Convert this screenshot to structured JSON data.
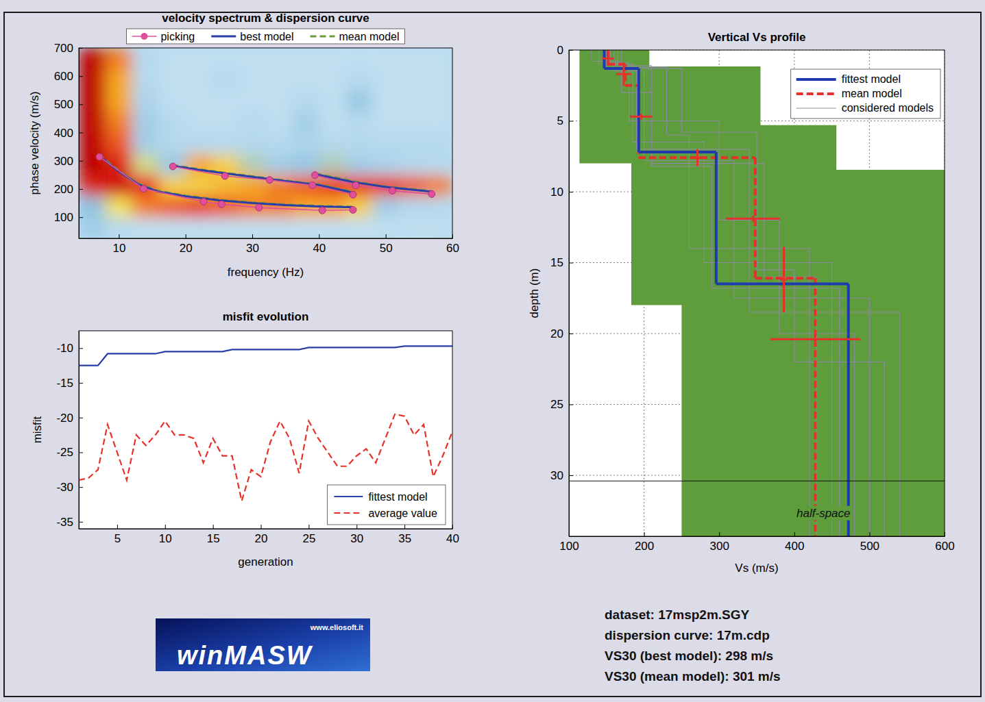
{
  "chart_data": [
    {
      "type": "spectrum",
      "title": "velocity spectrum & dispersion curve",
      "x_label": "frequency (Hz)",
      "y_label": "phase velocity (m/s)",
      "xlim": [
        4,
        60
      ],
      "ylim": [
        25,
        700
      ],
      "xticks": [
        10,
        20,
        30,
        40,
        50,
        60
      ],
      "yticks": [
        100,
        200,
        300,
        400,
        500,
        600,
        700
      ],
      "legend": "top",
      "heatmap": {
        "x_edges": [
          4,
          8,
          12,
          16,
          20,
          24,
          28,
          32,
          36,
          40,
          44,
          48,
          52,
          56,
          60
        ],
        "y_edges": [
          25,
          100,
          175,
          250,
          325,
          400,
          475,
          550,
          625,
          700
        ],
        "zlim": [
          0,
          1
        ],
        "cells": [
          [
            0.3,
            0.2,
            0.15,
            0.15,
            0.15,
            0.15,
            0.15,
            0.15,
            0.15,
            0.15,
            0.15,
            0.15,
            0.15,
            0.15
          ],
          [
            0.4,
            0.55,
            0.75,
            0.8,
            0.85,
            0.8,
            0.75,
            0.75,
            0.7,
            0.7,
            0.6,
            0.3,
            0.2,
            0.2
          ],
          [
            0.9,
            0.95,
            0.85,
            0.6,
            0.6,
            0.65,
            0.7,
            0.75,
            0.8,
            0.85,
            0.85,
            0.85,
            0.8,
            0.75
          ],
          [
            1.0,
            0.9,
            0.5,
            0.35,
            0.7,
            0.6,
            0.45,
            0.3,
            0.35,
            0.45,
            0.3,
            0.25,
            0.2,
            0.2
          ],
          [
            1.0,
            0.8,
            0.3,
            0.2,
            0.2,
            0.2,
            0.2,
            0.2,
            0.25,
            0.2,
            0.2,
            0.2,
            0.2,
            0.2
          ],
          [
            1.0,
            0.75,
            0.3,
            0.2,
            0.15,
            0.15,
            0.2,
            0.15,
            0.3,
            0.15,
            0.2,
            0.15,
            0.15,
            0.15
          ],
          [
            1.0,
            0.7,
            0.25,
            0.15,
            0.15,
            0.15,
            0.15,
            0.15,
            0.2,
            0.15,
            0.35,
            0.15,
            0.15,
            0.15
          ],
          [
            1.0,
            0.7,
            0.2,
            0.15,
            0.15,
            0.2,
            0.15,
            0.15,
            0.15,
            0.15,
            0.2,
            0.15,
            0.15,
            0.15
          ],
          [
            1.0,
            0.75,
            0.2,
            0.15,
            0.15,
            0.15,
            0.15,
            0.15,
            0.15,
            0.15,
            0.15,
            0.15,
            0.15,
            0.15
          ]
        ]
      },
      "series": [
        {
          "name": "picking",
          "color": "#e0509a",
          "marker": "circle",
          "line_style": "solid",
          "x": [
            7.1,
            13.7,
            22.7,
            25.4,
            31,
            40.5,
            45.1,
            45.1,
            18.1,
            25.9,
            32.6,
            39,
            45.1,
            45.1,
            39.4,
            45.5,
            51,
            56.9
          ],
          "values": [
            314,
            201,
            155,
            146,
            134,
            124,
            126,
            null,
            280,
            246,
            232,
            213,
            180,
            null,
            249,
            213,
            194,
            182
          ]
        },
        {
          "name": "best model",
          "color": "#2b3ea8",
          "line_style": "solid",
          "x": [
            7,
            10,
            13,
            16,
            20,
            25,
            30,
            35,
            40,
            45,
            45,
            18,
            22,
            26,
            30,
            35,
            40,
            45.5,
            45.5,
            39.5,
            45,
            50,
            57
          ],
          "values": [
            318,
            262,
            215,
            190,
            174,
            160,
            150,
            143,
            138,
            135,
            null,
            282,
            268,
            255,
            243,
            228,
            214,
            185,
            null,
            252,
            225,
            207,
            190
          ]
        },
        {
          "name": "mean model",
          "color": "#6b9b3b",
          "line_style": "dashed",
          "x": [
            7,
            10,
            13,
            16,
            20,
            25,
            30,
            35,
            40,
            45,
            45,
            18,
            22,
            26,
            30,
            35,
            40,
            45.5,
            45.5,
            39.5,
            45,
            50,
            57
          ],
          "values": [
            322,
            265,
            218,
            193,
            176,
            162,
            152,
            145,
            140,
            137,
            null,
            285,
            270,
            257,
            245,
            230,
            216,
            188,
            null,
            255,
            228,
            209,
            192
          ]
        }
      ]
    },
    {
      "type": "line",
      "title": "misfit evolution",
      "x_label": "generation",
      "y_label": "misfit",
      "xlim": [
        1,
        40
      ],
      "ylim": [
        -36,
        -7.5
      ],
      "xticks": [
        5,
        10,
        15,
        20,
        25,
        30,
        35,
        40
      ],
      "yticks": [
        -10,
        -15,
        -20,
        -25,
        -30,
        -35
      ],
      "legend": "lower right",
      "x": [
        1,
        2,
        3,
        4,
        5,
        6,
        7,
        8,
        9,
        10,
        11,
        12,
        13,
        14,
        15,
        16,
        17,
        18,
        19,
        20,
        21,
        22,
        23,
        24,
        25,
        26,
        27,
        28,
        29,
        30,
        31,
        32,
        33,
        34,
        35,
        36,
        37,
        38,
        39,
        40
      ],
      "series": [
        {
          "name": "fittest model",
          "color": "#2b3ea8",
          "line_style": "solid",
          "values": [
            -12.5,
            -12.5,
            -12.5,
            -10.8,
            -10.8,
            -10.8,
            -10.8,
            -10.8,
            -10.8,
            -10.5,
            -10.5,
            -10.5,
            -10.5,
            -10.5,
            -10.5,
            -10.5,
            -10.2,
            -10.2,
            -10.2,
            -10.2,
            -10.2,
            -10.2,
            -10.2,
            -10.2,
            -9.9,
            -9.9,
            -9.9,
            -9.9,
            -9.9,
            -9.9,
            -9.9,
            -9.9,
            -9.9,
            -9.9,
            -9.7,
            -9.7,
            -9.7,
            -9.7,
            -9.7,
            -9.7
          ]
        },
        {
          "name": "average value",
          "color": "#e8302a",
          "line_style": "dashed",
          "values": [
            -29,
            -28.7,
            -27.5,
            -21,
            -25,
            -29,
            -22.5,
            -24,
            -22.5,
            -20.5,
            -22.5,
            -22.5,
            -23,
            -26.5,
            -23,
            -25.5,
            -25.5,
            -32,
            -27.5,
            -28.5,
            -23.5,
            -20.5,
            -23,
            -28,
            -20.5,
            -23,
            -25,
            -27,
            -27,
            -25.5,
            -24.5,
            -26.5,
            -23,
            -19.5,
            -19.8,
            -22.5,
            -21,
            -28.5,
            -25.5,
            -22
          ]
        }
      ]
    },
    {
      "type": "profile",
      "title": "Vertical Vs profile",
      "x_label": "Vs (m/s)",
      "y_label": "depth (m)",
      "xlim": [
        100,
        600
      ],
      "ylim": [
        0,
        34.3
      ],
      "xticks": [
        100,
        200,
        300,
        400,
        500,
        600
      ],
      "yticks": [
        0,
        5,
        10,
        15,
        20,
        25,
        30
      ],
      "grid": true,
      "legend": "upper right",
      "search_space": {
        "color": "#5e9c3c",
        "top": [
          0,
          1.16,
          5.3,
          7.97,
          8.45,
          17.97
        ],
        "bottom": [
          1.16,
          5.3,
          7.97,
          8.45,
          17.97,
          34.3
        ],
        "vs_min": [
          114,
          114,
          114,
          183,
          183,
          250
        ],
        "vs_max": [
          207,
          355,
          456,
          456,
          600,
          600
        ]
      },
      "series": [
        {
          "name": "fittest model",
          "color": "#1f3aae",
          "line_style": "solid",
          "depths": [
            1.3,
            7.2,
            16.5
          ],
          "vs": [
            147,
            193,
            296,
            472
          ]
        },
        {
          "name": "mean model",
          "color": "#e8302a",
          "line_style": "dashed",
          "depths": [
            1.0,
            2.5,
            7.6,
            16.1
          ],
          "vs": [
            152,
            175,
            193,
            348,
            428
          ]
        },
        {
          "name": "considered models",
          "color": "#8c8c9e",
          "line_style": "solid",
          "models": [
            {
              "depths": [
                1.0,
                6.5,
                15
              ],
              "vs": [
                140,
                185,
                280,
                450
              ]
            },
            {
              "depths": [
                1.5,
                7.8,
                17.5
              ],
              "vs": [
                160,
                200,
                320,
                500
              ]
            },
            {
              "depths": [
                0.8,
                3.0,
                8.0,
                16
              ],
              "vs": [
                130,
                170,
                210,
                360,
                430
              ]
            },
            {
              "depths": [
                1.2,
                6.0,
                14
              ],
              "vs": [
                170,
                230,
                260,
                420
              ]
            },
            {
              "depths": [
                1.4,
                7.0,
                18.5
              ],
              "vs": [
                150,
                190,
                340,
                540
              ]
            },
            {
              "depths": [
                0.9,
                5.0,
                12,
                20
              ],
              "vs": [
                145,
                180,
                300,
                380,
                480
              ]
            },
            {
              "depths": [
                1.1,
                8.2,
                16.8
              ],
              "vs": [
                155,
                210,
                290,
                460
              ]
            },
            {
              "depths": [
                1.3,
                5.8,
                15.5,
                22
              ],
              "vs": [
                165,
                250,
                350,
                400,
                520
              ]
            }
          ]
        }
      ],
      "uncertainty": {
        "color": "#e8302a",
        "vs": [
          152,
          173,
          196,
          271,
          345,
          386,
          428
        ],
        "depth": [
          0.6,
          1.7,
          4.7,
          7.6,
          11.9,
          16.2,
          20.4
        ],
        "vs_err": [
          8,
          10,
          15,
          10,
          36,
          4,
          60
        ],
        "depth_err": [
          0.5,
          0.8,
          0.2,
          0.6,
          0.2,
          2.3,
          0.2
        ]
      },
      "half_space": {
        "label": "half-space",
        "depth": 30.4
      }
    }
  ],
  "info": {
    "lines": [
      "dataset: 17msp2m.SGY",
      "dispersion curve: 17m.cdp",
      "VS30 (best model): 298 m/s",
      "VS30 (mean model): 301 m/s"
    ]
  },
  "logo": {
    "title": "winMASW",
    "url": "www.eliosoft.it"
  }
}
